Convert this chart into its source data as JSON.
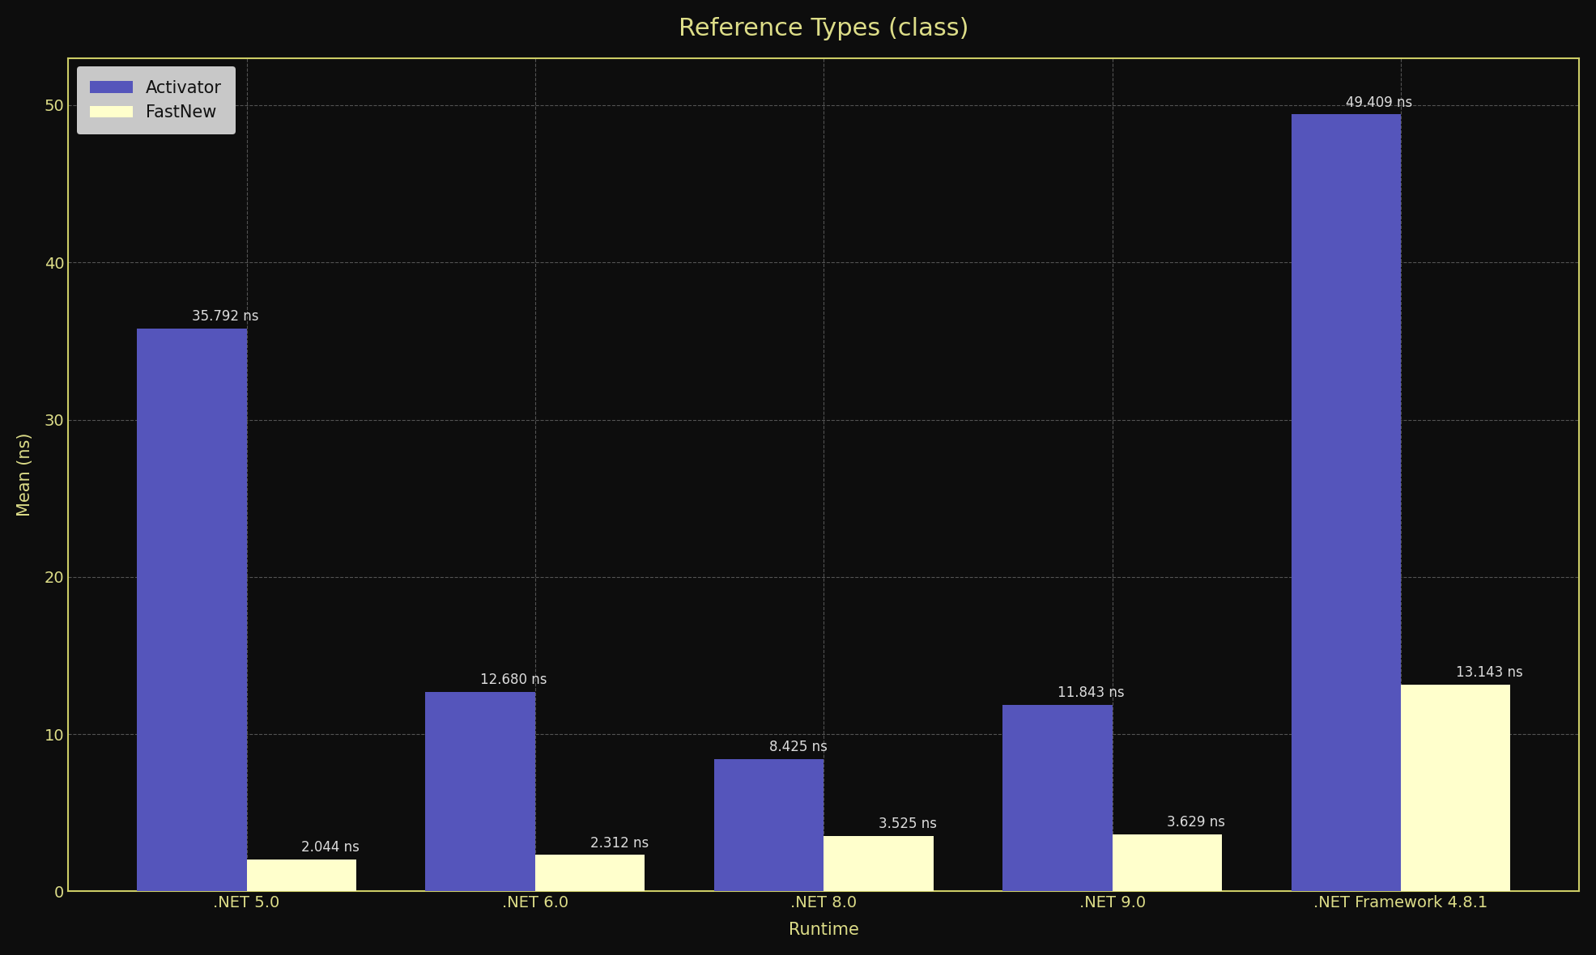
{
  "title": "Reference Types (class)",
  "xlabel": "Runtime",
  "ylabel": "Mean (ns)",
  "categories": [
    ".NET 5.0",
    ".NET 6.0",
    ".NET 8.0",
    ".NET 9.0",
    ".NET Framework 4.8.1"
  ],
  "series": [
    {
      "name": "Activator",
      "values": [
        35.792,
        12.68,
        8.425,
        11.843,
        49.409
      ],
      "color": "#5555bb"
    },
    {
      "name": "FastNew",
      "values": [
        2.044,
        2.312,
        3.525,
        3.629,
        13.143
      ],
      "color": "#ffffcc"
    }
  ],
  "labels": [
    [
      "35.792 ns",
      "2.044 ns"
    ],
    [
      "12.680 ns",
      "2.312 ns"
    ],
    [
      "8.425 ns",
      "3.525 ns"
    ],
    [
      "11.843 ns",
      "3.629 ns"
    ],
    [
      "49.409 ns",
      "13.143 ns"
    ]
  ],
  "ylim": [
    0,
    53
  ],
  "yticks": [
    0,
    10,
    20,
    30,
    40,
    50
  ],
  "background_color": "#0d0d0d",
  "plot_bg_color": "#0d0d0d",
  "grid_color": "#666666",
  "spine_color": "#cccc66",
  "tick_color": "#dddd88",
  "label_color": "#dddddd",
  "title_color": "#dddd88",
  "xlabel_color": "#dddd88",
  "ylabel_color": "#dddd88",
  "legend_bg": "#c8c8c8",
  "legend_text_color": "#111111",
  "bar_width": 0.38,
  "label_fontsize": 12,
  "tick_fontsize": 14,
  "title_fontsize": 22,
  "axis_label_fontsize": 15
}
